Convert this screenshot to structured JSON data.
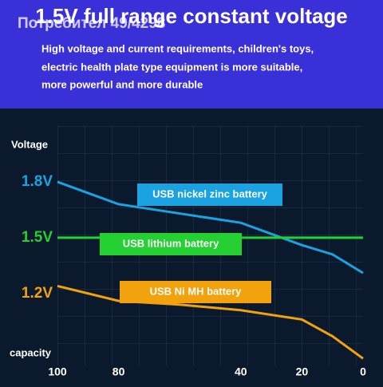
{
  "watermark": "Потребител 49/4298",
  "chart_data": {
    "type": "line",
    "title": "1.5V full range constant voltage",
    "subtitle_lines": [
      "High voltage and current requirements, children's toys,",
      "electric health plate type equipment is more suitable,",
      "more powerful and more durable"
    ],
    "y_label": "Voltage",
    "x_label": "capacity",
    "x": [
      100,
      80,
      60,
      40,
      20,
      10,
      0
    ],
    "series": [
      {
        "name": "USB nickel zinc battery",
        "color": "#1aa3e0",
        "values": [
          1.8,
          1.68,
          1.63,
          1.58,
          1.46,
          1.41,
          1.31
        ]
      },
      {
        "name": "USB lithium battery",
        "color": "#25d033",
        "values": [
          1.5,
          1.5,
          1.5,
          1.5,
          1.5,
          1.5,
          1.5
        ]
      },
      {
        "name": "USB Ni MH battery",
        "color": "#f2a20c",
        "values": [
          1.24,
          1.16,
          1.14,
          1.11,
          1.06,
          0.97,
          0.85
        ]
      }
    ],
    "xlim": [
      100,
      0
    ],
    "xticks": [
      100,
      80,
      40,
      20,
      0
    ],
    "ylim": [
      0.8,
      2.1
    ],
    "yticks": [
      {
        "value": 1.2,
        "label": "1.2V"
      },
      {
        "value": 1.5,
        "label": "1.5V"
      },
      {
        "value": 1.8,
        "label": "1.8V"
      }
    ]
  }
}
